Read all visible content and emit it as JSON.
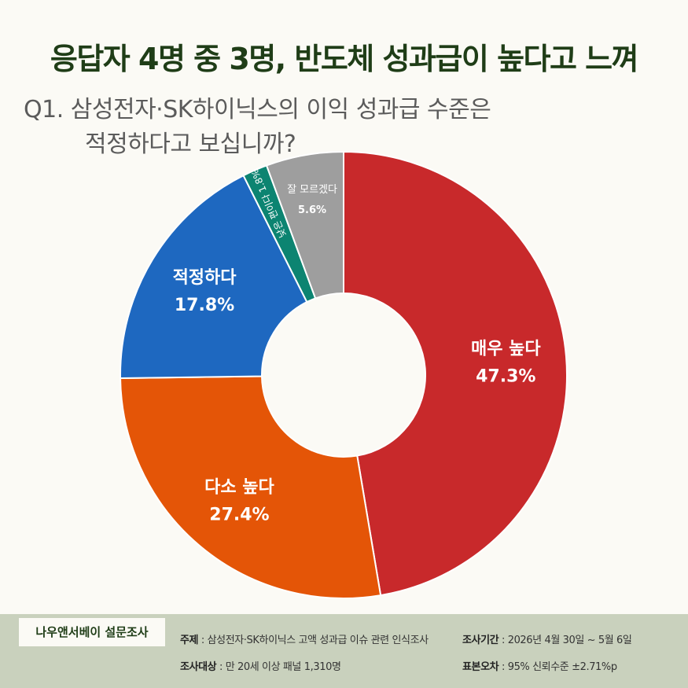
{
  "title": "응답자 4명 중 3명, 반도체 성과급이 높다고 느껴",
  "question": {
    "line1": "Q1. 삼성전자·SK하이닉스의 이익 성과급 수준은",
    "line2": "적정하다고 보십니까?"
  },
  "chart_data": {
    "type": "pie",
    "donut": true,
    "start": "top, clockwise",
    "slices": [
      {
        "label": "매우 높다",
        "value": 47.3,
        "value_label": "47.3%",
        "color": "#c8292b"
      },
      {
        "label": "다소 높다",
        "value": 27.4,
        "value_label": "27.4%",
        "color": "#e45507"
      },
      {
        "label": "적정하다",
        "value": 17.8,
        "value_label": "17.8%",
        "color": "#1e68c0"
      },
      {
        "label": "낮은 편이다",
        "value": 1.8,
        "value_label": "1.8%",
        "color": "#0c8471"
      },
      {
        "label": "잘 모르겠다",
        "value": 5.6,
        "value_label": "5.6%",
        "color": "#9e9e9e"
      }
    ]
  },
  "footer": {
    "brand": "나우앤서베이 설문조사",
    "topic_label": "주제",
    "topic_value": " : 삼성전자·SK하이닉스 고액 성과급 이슈 관련 인식조사",
    "target_label": "조사대상",
    "target_value": " : 만 20세 이상 패널 1,310명",
    "period_label": "조사기간",
    "period_value": " : 2026년 4월 30일 ~ 5월 6일",
    "error_label": "표본오차",
    "error_value": " : 95% 신뢰수준 ±2.71%p"
  }
}
